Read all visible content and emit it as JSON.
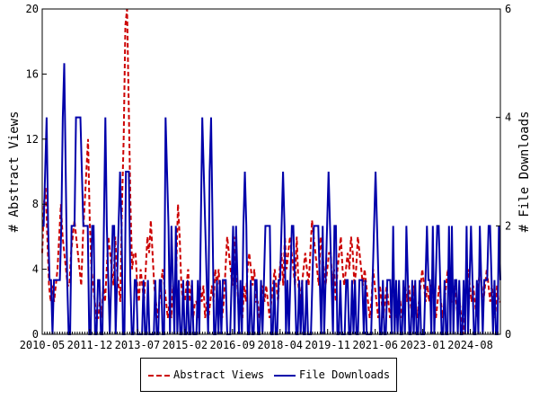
{
  "chart_data": {
    "type": "line",
    "title": "",
    "xlabel": "",
    "ylabel": "# Abstract Views",
    "y2label": "# File Downloads",
    "ylim": [
      0,
      20
    ],
    "y2lim": [
      0,
      6
    ],
    "y_ticks": [
      "0",
      "4",
      "8",
      "12",
      "16",
      "20"
    ],
    "y2_ticks": [
      "0",
      "2",
      "4",
      "6"
    ],
    "x_range": [
      "2010-05",
      "2025-08"
    ],
    "x_ticks": [
      "2010-05",
      "2011-12",
      "2013-07",
      "2015-02",
      "2016-09",
      "2018-04",
      "2019-11",
      "2021-06",
      "2023-01",
      "2024-08"
    ],
    "grid": false,
    "legend_position": "bottom",
    "series": [
      {
        "name": "Abstract Views",
        "axis": "left",
        "color": "#cc0000",
        "style": "dashed",
        "values": [
          5,
          8,
          9,
          6,
          3,
          2,
          3,
          2,
          3,
          4,
          6,
          8,
          6,
          5,
          4,
          3,
          3,
          5,
          6,
          7,
          6,
          5,
          4,
          3,
          6,
          8,
          10,
          12,
          7,
          4,
          3,
          2,
          1,
          1,
          2,
          1,
          3,
          2,
          4,
          6,
          5,
          4,
          3,
          6,
          4,
          3,
          2,
          8,
          12,
          19,
          20,
          14,
          8,
          4,
          5,
          5,
          3,
          2,
          4,
          3,
          2,
          4,
          6,
          5,
          7,
          5,
          3,
          2,
          1,
          2,
          3,
          4,
          3,
          2,
          1,
          2,
          1,
          3,
          2,
          4,
          8,
          6,
          3,
          2,
          2,
          3,
          4,
          2,
          3,
          1,
          2,
          2,
          1,
          3,
          2,
          3,
          1,
          2,
          1,
          2,
          3,
          2,
          4,
          3,
          4,
          2,
          1,
          2,
          4,
          6,
          5,
          4,
          3,
          6,
          4,
          3,
          1,
          2,
          1,
          3,
          2,
          4,
          5,
          4,
          3,
          4,
          2,
          2,
          1,
          2,
          3,
          2,
          3,
          2,
          1,
          2,
          3,
          4,
          3,
          2,
          4,
          5,
          3,
          6,
          4,
          5,
          6,
          5,
          4,
          3,
          6,
          3,
          2,
          3,
          4,
          5,
          4,
          3,
          5,
          7,
          6,
          5,
          4,
          3,
          6,
          5,
          4,
          3,
          4,
          5,
          5,
          3,
          4,
          2,
          4,
          5,
          6,
          4,
          3,
          4,
          5,
          4,
          6,
          5,
          3,
          4,
          6,
          5,
          4,
          3,
          4,
          3,
          2,
          1,
          2,
          4,
          3,
          2,
          1,
          3,
          2,
          1,
          2,
          3,
          2,
          1,
          2,
          3,
          2,
          1,
          2,
          2,
          1,
          2,
          3,
          2,
          3,
          2,
          1,
          3,
          2,
          1,
          2,
          3,
          4,
          3,
          2,
          3,
          2,
          3,
          3,
          2,
          1,
          2,
          3,
          2,
          1,
          2,
          3,
          4,
          3,
          2,
          2,
          3,
          2,
          1,
          2,
          1,
          0,
          2,
          3,
          4,
          3,
          2,
          3,
          2,
          1,
          3,
          4,
          3,
          2,
          3,
          4,
          3,
          2,
          3,
          2,
          1,
          3,
          2,
          2
        ]
      },
      {
        "name": "File Downloads",
        "axis": "right",
        "color": "#0000aa",
        "style": "solid",
        "values": [
          2,
          2,
          3,
          4,
          2,
          1,
          1,
          0,
          1,
          1,
          1,
          1,
          1,
          2,
          4,
          5,
          3,
          1,
          0,
          0,
          2,
          2,
          2,
          4,
          4,
          4,
          4,
          3,
          2,
          2,
          2,
          2,
          0,
          0,
          2,
          2,
          0,
          0,
          1,
          1,
          0,
          0,
          2,
          4,
          2,
          1,
          0,
          1,
          2,
          2,
          0,
          1,
          2,
          3,
          2,
          0,
          0,
          3,
          3,
          3,
          1,
          0,
          0,
          1,
          1,
          0,
          0,
          0,
          0,
          1,
          0,
          0,
          1,
          0,
          0,
          0,
          0,
          1,
          0,
          0,
          1,
          1,
          0,
          0,
          4,
          3,
          2,
          0,
          2,
          1,
          0,
          2,
          0,
          1,
          0,
          0,
          1,
          0,
          0,
          1,
          0,
          0,
          1,
          0,
          0,
          0,
          1,
          0,
          2,
          4,
          3,
          2,
          1,
          0,
          3,
          4,
          2,
          0,
          0,
          1,
          0,
          1,
          0,
          1,
          1,
          1,
          0,
          0,
          0,
          1,
          2,
          0,
          2,
          1,
          0,
          1,
          0,
          2,
          3,
          2,
          0,
          0,
          1,
          0,
          0,
          1,
          1,
          0,
          0,
          1,
          0,
          1,
          2,
          2,
          2,
          2,
          0,
          0,
          1,
          0,
          0,
          1,
          1,
          2,
          3,
          2,
          0,
          1,
          0,
          1,
          2,
          2,
          1,
          0,
          0,
          1,
          0,
          1,
          0,
          0,
          1,
          0,
          0,
          0,
          1,
          2,
          2,
          2,
          2,
          1,
          0,
          2,
          0,
          1,
          2,
          3,
          2,
          1,
          0,
          2,
          2,
          0,
          0,
          1,
          0,
          0,
          0,
          1,
          1,
          0,
          0,
          1,
          0,
          1,
          0,
          0,
          1,
          1,
          1,
          0,
          1,
          0,
          0,
          0,
          0,
          1,
          2,
          3,
          2,
          1,
          0,
          0,
          1,
          0,
          0,
          1,
          1,
          1,
          0,
          2,
          0,
          1,
          0,
          1,
          0,
          0,
          1,
          0,
          2,
          1,
          0,
          0,
          1,
          0,
          1,
          0,
          0,
          1,
          0,
          0,
          0,
          1,
          2,
          1,
          1,
          0,
          2,
          0,
          1,
          2,
          2,
          1,
          0,
          0,
          1,
          0,
          0,
          2,
          0,
          2,
          0,
          1,
          1,
          0,
          1,
          0,
          0,
          1,
          0,
          2,
          0,
          1,
          2,
          1,
          0,
          0,
          1,
          0,
          2,
          1,
          0,
          1,
          1,
          1,
          2,
          2,
          1,
          0,
          1,
          0,
          0,
          2,
          1
        ]
      }
    ]
  }
}
